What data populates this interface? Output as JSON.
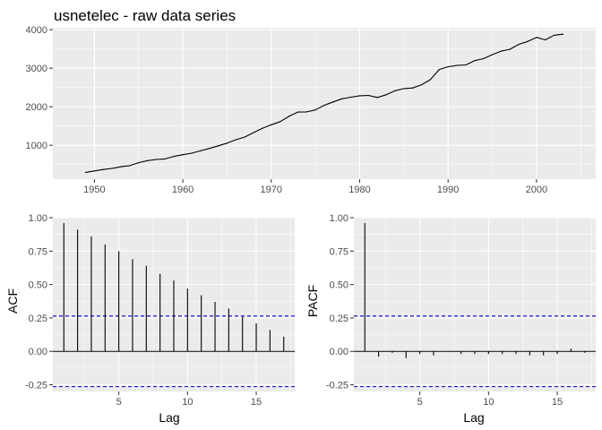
{
  "chart_data": [
    {
      "type": "line",
      "title": "usnetelec - raw data series",
      "xlabel": "",
      "ylabel": "",
      "xlim": [
        1945.3,
        2006.7
      ],
      "ylim": [
        120,
        4050
      ],
      "x_ticks": [
        1950,
        1960,
        1970,
        1980,
        1990,
        2000
      ],
      "x_tick_labels": [
        "1950",
        "1960",
        "1970",
        "1980",
        "1990",
        "2000"
      ],
      "y_ticks": [
        1000,
        2000,
        3000,
        4000
      ],
      "y_tick_labels": [
        "1000",
        "2000",
        "3000",
        "4000"
      ],
      "grid": true,
      "x": [
        1949,
        1950,
        1951,
        1952,
        1953,
        1954,
        1955,
        1956,
        1957,
        1958,
        1959,
        1960,
        1961,
        1962,
        1963,
        1964,
        1965,
        1966,
        1967,
        1968,
        1969,
        1970,
        1971,
        1972,
        1973,
        1974,
        1975,
        1976,
        1977,
        1978,
        1979,
        1980,
        1981,
        1982,
        1983,
        1984,
        1985,
        1986,
        1987,
        1988,
        1989,
        1990,
        1991,
        1992,
        1993,
        1994,
        1995,
        1996,
        1997,
        1998,
        1999,
        2000,
        2001,
        2002,
        2003
      ],
      "values": [
        296,
        334,
        371,
        400,
        443,
        472,
        547,
        601,
        632,
        645,
        710,
        755,
        794,
        855,
        917,
        984,
        1055,
        1144,
        1214,
        1329,
        1442,
        1532,
        1613,
        1750,
        1861,
        1867,
        1918,
        2038,
        2124,
        2206,
        2247,
        2286,
        2295,
        2241,
        2310,
        2416,
        2470,
        2487,
        2572,
        2704,
        2967,
        3038,
        3073,
        3084,
        3197,
        3247,
        3353,
        3444,
        3492,
        3620,
        3695,
        3802,
        3737,
        3858,
        3883
      ]
    },
    {
      "type": "bar",
      "xlabel": "Lag",
      "ylabel": "ACF",
      "xlim": [
        0.2,
        17.8
      ],
      "ylim": [
        -0.3,
        1.0
      ],
      "x_ticks": [
        5,
        10,
        15
      ],
      "x_tick_labels": [
        "5",
        "10",
        "15"
      ],
      "y_ticks": [
        -0.25,
        0,
        0.25,
        0.5,
        0.75,
        1.0
      ],
      "y_tick_labels": [
        "-0.25",
        "0.00",
        "0.25",
        "0.50",
        "0.75",
        "1.00"
      ],
      "grid": true,
      "confidence_bound": 0.264,
      "lags": [
        1,
        2,
        3,
        4,
        5,
        6,
        7,
        8,
        9,
        10,
        11,
        12,
        13,
        14,
        15,
        16,
        17
      ],
      "values": [
        0.96,
        0.91,
        0.86,
        0.8,
        0.75,
        0.69,
        0.64,
        0.58,
        0.53,
        0.47,
        0.42,
        0.37,
        0.32,
        0.26,
        0.21,
        0.16,
        0.11
      ]
    },
    {
      "type": "bar",
      "xlabel": "Lag",
      "ylabel": "PACF",
      "xlim": [
        0.2,
        17.8
      ],
      "ylim": [
        -0.3,
        1.0
      ],
      "x_ticks": [
        5,
        10,
        15
      ],
      "x_tick_labels": [
        "5",
        "10",
        "15"
      ],
      "y_ticks": [
        -0.25,
        0,
        0.25,
        0.5,
        0.75,
        1.0
      ],
      "y_tick_labels": [
        "-0.25",
        "0.00",
        "0.25",
        "0.50",
        "0.75",
        "1.00"
      ],
      "grid": true,
      "confidence_bound": 0.264,
      "lags": [
        1,
        2,
        3,
        4,
        5,
        6,
        7,
        8,
        9,
        10,
        11,
        12,
        13,
        14,
        15,
        16,
        17
      ],
      "values": [
        0.96,
        -0.04,
        -0.01,
        -0.05,
        -0.02,
        -0.03,
        0.0,
        -0.02,
        -0.02,
        -0.02,
        -0.02,
        -0.02,
        -0.03,
        -0.03,
        -0.02,
        0.02,
        -0.01
      ]
    }
  ],
  "colors": {
    "panel_background": "#ebebeb",
    "grid_major": "#ffffff",
    "line": "#000000",
    "confidence_line": "#0000cc"
  }
}
